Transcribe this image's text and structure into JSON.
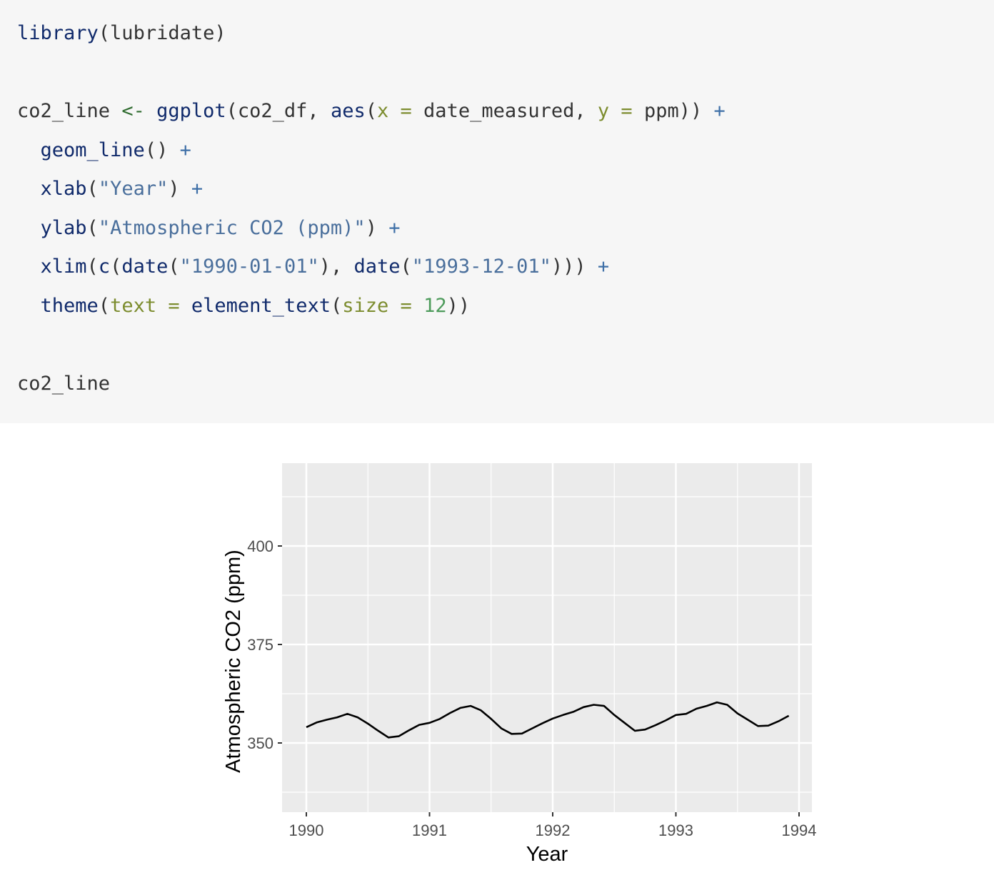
{
  "code": [
    [
      {
        "t": "library",
        "c": "fn"
      },
      {
        "t": "(lubridate)",
        "c": "plain"
      }
    ],
    [],
    [
      {
        "t": "co2_line ",
        "c": "plain"
      },
      {
        "t": "<-",
        "c": "asgn"
      },
      {
        "t": " ",
        "c": "plain"
      },
      {
        "t": "ggplot",
        "c": "fn"
      },
      {
        "t": "(co2_df, ",
        "c": "plain"
      },
      {
        "t": "aes",
        "c": "fn"
      },
      {
        "t": "(",
        "c": "plain"
      },
      {
        "t": "x",
        "c": "arg"
      },
      {
        "t": " ",
        "c": "plain"
      },
      {
        "t": "=",
        "c": "arg"
      },
      {
        "t": " date_measured, ",
        "c": "plain"
      },
      {
        "t": "y",
        "c": "arg"
      },
      {
        "t": " ",
        "c": "plain"
      },
      {
        "t": "=",
        "c": "arg"
      },
      {
        "t": " ppm)) ",
        "c": "plain"
      },
      {
        "t": "+",
        "c": "op"
      }
    ],
    [
      {
        "t": "  ",
        "c": "plain"
      },
      {
        "t": "geom_line",
        "c": "fn"
      },
      {
        "t": "() ",
        "c": "plain"
      },
      {
        "t": "+",
        "c": "op"
      }
    ],
    [
      {
        "t": "  ",
        "c": "plain"
      },
      {
        "t": "xlab",
        "c": "fn"
      },
      {
        "t": "(",
        "c": "plain"
      },
      {
        "t": "\"Year\"",
        "c": "str"
      },
      {
        "t": ") ",
        "c": "plain"
      },
      {
        "t": "+",
        "c": "op"
      }
    ],
    [
      {
        "t": "  ",
        "c": "plain"
      },
      {
        "t": "ylab",
        "c": "fn"
      },
      {
        "t": "(",
        "c": "plain"
      },
      {
        "t": "\"Atmospheric CO2 (ppm)\"",
        "c": "str"
      },
      {
        "t": ") ",
        "c": "plain"
      },
      {
        "t": "+",
        "c": "op"
      }
    ],
    [
      {
        "t": "  ",
        "c": "plain"
      },
      {
        "t": "xlim",
        "c": "fn"
      },
      {
        "t": "(",
        "c": "plain"
      },
      {
        "t": "c",
        "c": "fn"
      },
      {
        "t": "(",
        "c": "plain"
      },
      {
        "t": "date",
        "c": "fn"
      },
      {
        "t": "(",
        "c": "plain"
      },
      {
        "t": "\"1990-01-01\"",
        "c": "str"
      },
      {
        "t": "), ",
        "c": "plain"
      },
      {
        "t": "date",
        "c": "fn"
      },
      {
        "t": "(",
        "c": "plain"
      },
      {
        "t": "\"1993-12-01\"",
        "c": "str"
      },
      {
        "t": "))) ",
        "c": "plain"
      },
      {
        "t": "+",
        "c": "op"
      }
    ],
    [
      {
        "t": "  ",
        "c": "plain"
      },
      {
        "t": "theme",
        "c": "fn"
      },
      {
        "t": "(",
        "c": "plain"
      },
      {
        "t": "text",
        "c": "arg"
      },
      {
        "t": " ",
        "c": "plain"
      },
      {
        "t": "=",
        "c": "arg"
      },
      {
        "t": " ",
        "c": "plain"
      },
      {
        "t": "element_text",
        "c": "fn"
      },
      {
        "t": "(",
        "c": "plain"
      },
      {
        "t": "size",
        "c": "arg"
      },
      {
        "t": " ",
        "c": "plain"
      },
      {
        "t": "=",
        "c": "arg"
      },
      {
        "t": " ",
        "c": "plain"
      },
      {
        "t": "12",
        "c": "num"
      },
      {
        "t": "))",
        "c": "plain"
      }
    ],
    [],
    [
      {
        "t": "co2_line",
        "c": "plain"
      }
    ]
  ],
  "chart_data": {
    "type": "line",
    "xlabel": "Year",
    "ylabel": "Atmospheric CO2 (ppm)",
    "xlim": [
      "1990-01-01",
      "1993-12-01"
    ],
    "ylim": [
      335,
      420
    ],
    "x_ticks": [
      "1990",
      "1991",
      "1992",
      "1993",
      "1994"
    ],
    "y_ticks": [
      350,
      375,
      400
    ],
    "grid": true,
    "colors": {
      "panel": "#ebebeb",
      "grid": "#ffffff",
      "line": "#000000"
    },
    "series": [
      {
        "x": [
          "1990-01",
          "1990-02",
          "1990-03",
          "1990-04",
          "1990-05",
          "1990-06",
          "1990-07",
          "1990-08",
          "1990-09",
          "1990-10",
          "1990-11",
          "1990-12",
          "1991-01",
          "1991-02",
          "1991-03",
          "1991-04",
          "1991-05",
          "1991-06",
          "1991-07",
          "1991-08",
          "1991-09",
          "1991-10",
          "1991-11",
          "1991-12",
          "1992-01",
          "1992-02",
          "1992-03",
          "1992-04",
          "1992-05",
          "1992-06",
          "1992-07",
          "1992-08",
          "1992-09",
          "1992-10",
          "1992-11",
          "1992-12",
          "1993-01",
          "1993-02",
          "1993-03",
          "1993-04",
          "1993-05",
          "1993-06",
          "1993-07",
          "1993-08",
          "1993-09",
          "1993-10",
          "1993-11",
          "1993-12"
        ],
        "values": [
          354.0,
          355.2,
          355.9,
          356.5,
          357.4,
          356.5,
          354.9,
          353.1,
          351.4,
          351.7,
          353.2,
          354.6,
          355.1,
          356.1,
          357.6,
          358.9,
          359.4,
          358.3,
          356.1,
          353.7,
          352.3,
          352.4,
          353.7,
          355.0,
          356.2,
          357.1,
          357.9,
          359.1,
          359.7,
          359.4,
          357.1,
          355.1,
          353.1,
          353.4,
          354.5,
          355.7,
          357.1,
          357.4,
          358.7,
          359.4,
          360.3,
          359.7,
          357.5,
          355.9,
          354.3,
          354.4,
          355.5,
          356.9
        ]
      }
    ]
  }
}
